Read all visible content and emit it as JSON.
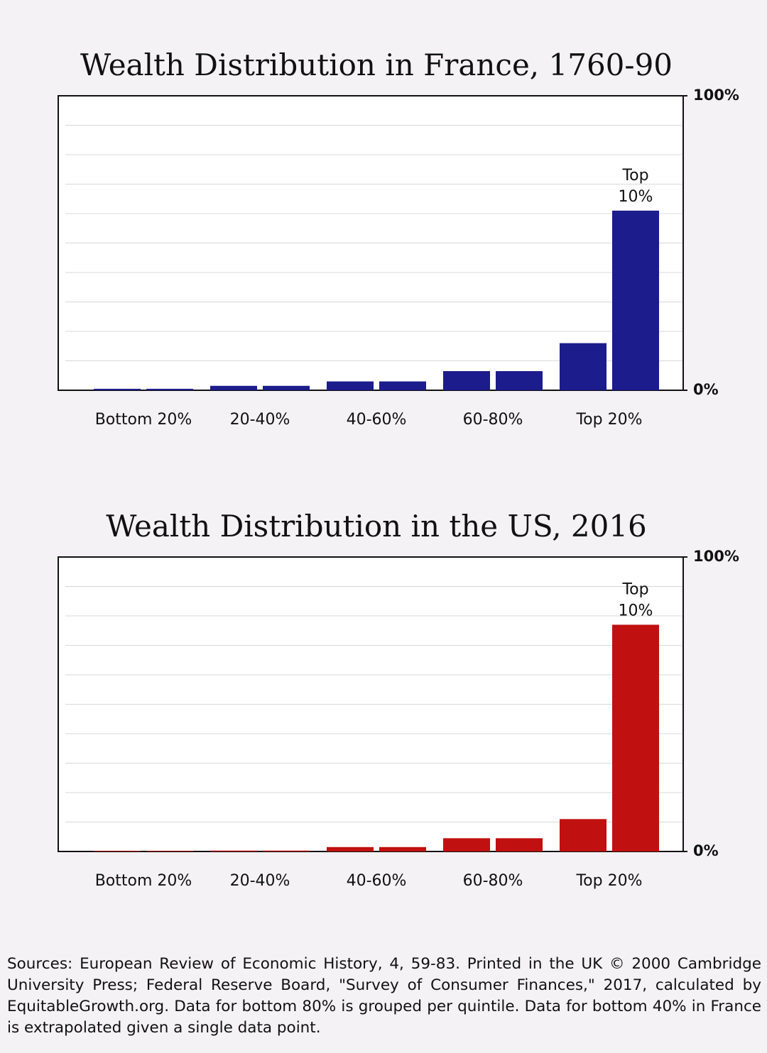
{
  "chart_data": [
    {
      "type": "bar",
      "title": "Wealth Distribution in France, 1760-90",
      "categories": [
        "Bottom 20%",
        null,
        "20-40%",
        null,
        "40-60%",
        null,
        "60-80%",
        null,
        "Top 20%",
        null
      ],
      "values": [
        0.5,
        0.5,
        1.5,
        1.5,
        3,
        3,
        6.5,
        6.5,
        16,
        61
      ],
      "color": "#1c1c8c",
      "annotation": [
        "Top",
        "10%"
      ],
      "ylim": [
        0,
        100
      ],
      "yticks": [
        {
          "value": 0,
          "label": "0%"
        },
        {
          "value": 100,
          "label": "100%"
        }
      ],
      "grid": true
    },
    {
      "type": "bar",
      "title": "Wealth Distribution in the US, 2016",
      "categories": [
        "Bottom 20%",
        null,
        "20-40%",
        null,
        "40-60%",
        null,
        "60-80%",
        null,
        "Top 20%",
        null
      ],
      "values": [
        0.2,
        0.2,
        0.3,
        0.3,
        1.5,
        1.5,
        4.5,
        4.5,
        11,
        77
      ],
      "color": "#c0100f",
      "annotation": [
        "Top",
        "10%"
      ],
      "ylim": [
        0,
        100
      ],
      "yticks": [
        {
          "value": 0,
          "label": "0%"
        },
        {
          "value": 100,
          "label": "100%"
        }
      ],
      "grid": true
    }
  ],
  "source": "Sources: European Review of Economic History, 4, 59-83. Printed in the UK © 2000 Cambridge University Press; Federal Reserve Board, \"Survey of Consumer Finances,\" 2017, calculated by EquitableGrowth.org. Data for bottom 80% is grouped per quintile. Data for bottom 40% in France is extrapolated given a single data point."
}
